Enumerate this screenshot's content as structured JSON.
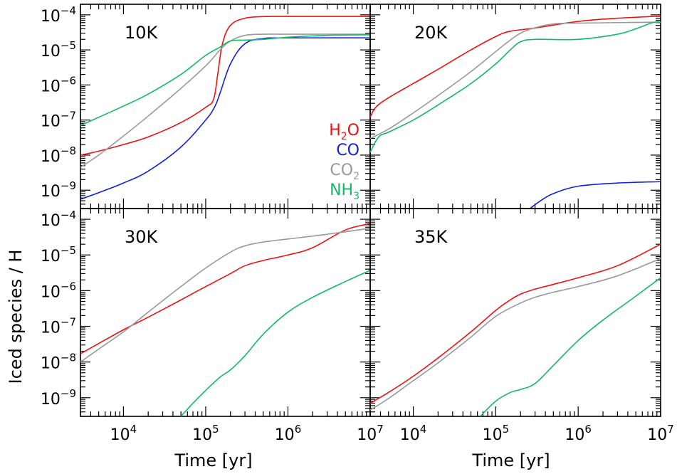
{
  "figure": {
    "ylabel": "Iced species / H",
    "xlabel": "Time [yr]"
  },
  "legend": [
    {
      "label": "H",
      "sub": "2",
      "suffix": "O",
      "color": "#ee1111"
    },
    {
      "label": "CO",
      "sub": "",
      "suffix": "",
      "color": "#1122dd"
    },
    {
      "label": "CO",
      "sub": "2",
      "suffix": "",
      "color": "#999999"
    },
    {
      "label": "NH",
      "sub": "3",
      "suffix": "",
      "color": "#11bb66"
    }
  ],
  "colors": {
    "h2o": "#ee1111",
    "co": "#1122dd",
    "co2": "#999999",
    "nh3": "#11bb66"
  },
  "chart_data": [
    {
      "type": "line",
      "panel_label": "10K",
      "xlabel": "",
      "ylabel": "Iced species / H",
      "x_scale": "log",
      "y_scale": "log",
      "xlim": [
        3000,
        10000000
      ],
      "ylim": [
        3e-10,
        0.0002
      ],
      "y_ticks": [
        "10^-9",
        "10^-8",
        "10^-7",
        "10^-6",
        "10^-5",
        "10^-4"
      ],
      "series": [
        {
          "name": "H2O",
          "color": "#ee1111",
          "points": [
            [
              3000,
              1e-08
            ],
            [
              5000,
              1.3e-08
            ],
            [
              10000,
              2e-08
            ],
            [
              20000,
              3.3e-08
            ],
            [
              50000,
              8.5e-08
            ],
            [
              100000,
              2.3e-07
            ],
            [
              125000,
              4e-07
            ],
            [
              140000,
              2e-06
            ],
            [
              160000,
              1.5e-05
            ],
            [
              200000,
              5e-05
            ],
            [
              300000,
              8e-05
            ],
            [
              500000,
              8.9e-05
            ],
            [
              1000000,
              9e-05
            ],
            [
              10000000,
              9e-05
            ]
          ]
        },
        {
          "name": "CO",
          "color": "#1122dd",
          "points": [
            [
              3000,
              5.5e-10
            ],
            [
              5000,
              8.5e-10
            ],
            [
              10000,
              1.6e-09
            ],
            [
              20000,
              3.5e-09
            ],
            [
              50000,
              1.7e-08
            ],
            [
              100000,
              1e-07
            ],
            [
              130000,
              2.5e-07
            ],
            [
              150000,
              6e-07
            ],
            [
              200000,
              4e-06
            ],
            [
              300000,
              1.5e-05
            ],
            [
              500000,
              2.1e-05
            ],
            [
              1000000,
              2.2e-05
            ],
            [
              10000000,
              2.2e-05
            ]
          ]
        },
        {
          "name": "CO2",
          "color": "#999999",
          "points": [
            [
              3000,
              4.5e-09
            ],
            [
              5000,
              1e-08
            ],
            [
              10000,
              3.5e-08
            ],
            [
              20000,
              1.3e-07
            ],
            [
              50000,
              8e-07
            ],
            [
              100000,
              3.5e-06
            ],
            [
              150000,
              1e-05
            ],
            [
              200000,
              1.8e-05
            ],
            [
              300000,
              2.6e-05
            ],
            [
              500000,
              2.8e-05
            ],
            [
              1000000,
              2.8e-05
            ],
            [
              10000000,
              2.8e-05
            ]
          ]
        },
        {
          "name": "NH3",
          "color": "#11bb66",
          "points": [
            [
              3000,
              7e-08
            ],
            [
              5000,
              1.2e-07
            ],
            [
              10000,
              2.5e-07
            ],
            [
              20000,
              5.5e-07
            ],
            [
              50000,
              2e-06
            ],
            [
              100000,
              7e-06
            ],
            [
              150000,
              1.2e-05
            ],
            [
              200000,
              1.8e-05
            ],
            [
              300000,
              1.9e-05
            ],
            [
              500000,
              2e-05
            ],
            [
              1000000,
              2.3e-05
            ],
            [
              3000000,
              2.6e-05
            ],
            [
              10000000,
              2.7e-05
            ]
          ]
        }
      ]
    },
    {
      "type": "line",
      "panel_label": "20K",
      "xlabel": "",
      "ylabel": "",
      "x_scale": "log",
      "y_scale": "log",
      "xlim": [
        3000,
        10000000
      ],
      "ylim": [
        3e-10,
        0.0002
      ],
      "series": [
        {
          "name": "H2O",
          "color": "#ee1111",
          "points": [
            [
              3000,
              1.2e-07
            ],
            [
              3500,
              2.3e-07
            ],
            [
              5000,
              4.3e-07
            ],
            [
              10000,
              1.1e-06
            ],
            [
              20000,
              2.8e-06
            ],
            [
              50000,
              1e-05
            ],
            [
              100000,
              2.4e-05
            ],
            [
              150000,
              3.4e-05
            ],
            [
              300000,
              4.2e-05
            ],
            [
              1000000,
              6.5e-05
            ],
            [
              3000000,
              8e-05
            ],
            [
              10000000,
              9.2e-05
            ]
          ]
        },
        {
          "name": "CO",
          "color": "#1122dd",
          "points": [
            [
              260000,
              3e-10
            ],
            [
              350000,
              5e-10
            ],
            [
              500000,
              8e-10
            ],
            [
              1000000,
              1.3e-09
            ],
            [
              3000000,
              1.6e-09
            ],
            [
              10000000,
              1.75e-09
            ]
          ]
        },
        {
          "name": "CO2",
          "color": "#999999",
          "points": [
            [
              3000,
              3e-08
            ],
            [
              5000,
              5.5e-08
            ],
            [
              10000,
              1.6e-07
            ],
            [
              20000,
              5e-07
            ],
            [
              50000,
              2.4e-06
            ],
            [
              100000,
              9e-06
            ],
            [
              150000,
              1.9e-05
            ],
            [
              200000,
              3e-05
            ],
            [
              300000,
              4.3e-05
            ],
            [
              500000,
              5.5e-05
            ],
            [
              1000000,
              5.8e-05
            ],
            [
              10000000,
              6.2e-05
            ]
          ]
        },
        {
          "name": "NH3",
          "color": "#11bb66",
          "points": [
            [
              3000,
              1.2e-08
            ],
            [
              3800,
              3.3e-08
            ],
            [
              5000,
              4.5e-08
            ],
            [
              10000,
              1e-07
            ],
            [
              20000,
              2.7e-07
            ],
            [
              50000,
              1.1e-06
            ],
            [
              100000,
              4e-06
            ],
            [
              150000,
              1e-05
            ],
            [
              200000,
              1.7e-05
            ],
            [
              300000,
              2e-05
            ],
            [
              1000000,
              2e-05
            ],
            [
              3000000,
              2.8e-05
            ],
            [
              5000000,
              4e-05
            ],
            [
              8000000,
              6e-05
            ],
            [
              10000000,
              6.2e-05
            ]
          ]
        }
      ]
    },
    {
      "type": "line",
      "panel_label": "30K",
      "xlabel": "Time [yr]",
      "ylabel": "Iced species / H",
      "x_scale": "log",
      "y_scale": "log",
      "xlim": [
        3000,
        10000000
      ],
      "ylim": [
        3e-10,
        0.0002
      ],
      "x_ticks": [
        "10^4",
        "10^5",
        "10^6",
        "10^7"
      ],
      "y_ticks": [
        "10^-9",
        "10^-8",
        "10^-7",
        "10^-6",
        "10^-5",
        "10^-4"
      ],
      "series": [
        {
          "name": "H2O",
          "color": "#ee1111",
          "points": [
            [
              3000,
              1.7e-08
            ],
            [
              5000,
              3.3e-08
            ],
            [
              10000,
              8e-08
            ],
            [
              20000,
              1.8e-07
            ],
            [
              50000,
              5.5e-07
            ],
            [
              100000,
              1.3e-06
            ],
            [
              200000,
              3e-06
            ],
            [
              300000,
              5e-06
            ],
            [
              500000,
              7e-06
            ],
            [
              1000000,
              1e-05
            ],
            [
              2000000,
              1.6e-05
            ],
            [
              5000000,
              5e-05
            ],
            [
              10000000,
              7.5e-05
            ]
          ]
        },
        {
          "name": "CO2",
          "color": "#999999",
          "points": [
            [
              3000,
              1e-08
            ],
            [
              5000,
              2.3e-08
            ],
            [
              10000,
              7e-08
            ],
            [
              20000,
              2.5e-07
            ],
            [
              50000,
              1.3e-06
            ],
            [
              100000,
              4.3e-06
            ],
            [
              200000,
              1.2e-05
            ],
            [
              300000,
              1.8e-05
            ],
            [
              500000,
              2.3e-05
            ],
            [
              1000000,
              2.8e-05
            ],
            [
              3000000,
              3.8e-05
            ],
            [
              10000000,
              5.6e-05
            ]
          ]
        },
        {
          "name": "NH3",
          "color": "#11bb66",
          "points": [
            [
              50000,
              3e-10
            ],
            [
              70000,
              7e-10
            ],
            [
              100000,
              1.6e-09
            ],
            [
              150000,
              3.8e-09
            ],
            [
              200000,
              6e-09
            ],
            [
              300000,
              1.5e-08
            ],
            [
              500000,
              6e-08
            ],
            [
              1000000,
              2.5e-07
            ],
            [
              2000000,
              6.5e-07
            ],
            [
              5000000,
              1.8e-06
            ],
            [
              10000000,
              3.7e-06
            ]
          ]
        }
      ]
    },
    {
      "type": "line",
      "panel_label": "35K",
      "xlabel": "Time [yr]",
      "ylabel": "",
      "x_scale": "log",
      "y_scale": "log",
      "xlim": [
        3000,
        10000000
      ],
      "ylim": [
        3e-10,
        0.0002
      ],
      "x_ticks": [
        "10^4",
        "10^5",
        "10^6",
        "10^7"
      ],
      "series": [
        {
          "name": "H2O",
          "color": "#ee1111",
          "points": [
            [
              3000,
              7e-10
            ],
            [
              5000,
              1.4e-09
            ],
            [
              10000,
              4e-09
            ],
            [
              20000,
              1.3e-08
            ],
            [
              50000,
              7e-08
            ],
            [
              100000,
              2.8e-07
            ],
            [
              150000,
              5.5e-07
            ],
            [
              200000,
              8e-07
            ],
            [
              300000,
              1.1e-06
            ],
            [
              500000,
              1.5e-06
            ],
            [
              1000000,
              2.3e-06
            ],
            [
              3000000,
              5e-06
            ],
            [
              10000000,
              2e-05
            ]
          ]
        },
        {
          "name": "CO2",
          "color": "#999999",
          "points": [
            [
              3000,
              4.5e-10
            ],
            [
              5000,
              9.5e-10
            ],
            [
              10000,
              3e-09
            ],
            [
              20000,
              9.5e-09
            ],
            [
              50000,
              5e-08
            ],
            [
              100000,
              1.9e-07
            ],
            [
              200000,
              4.5e-07
            ],
            [
              300000,
              6.5e-07
            ],
            [
              500000,
              9e-07
            ],
            [
              1000000,
              1.3e-06
            ],
            [
              3000000,
              2.6e-06
            ],
            [
              10000000,
              8e-06
            ]
          ]
        },
        {
          "name": "NH3",
          "color": "#11bb66",
          "points": [
            [
              65000,
              3e-10
            ],
            [
              100000,
              8e-10
            ],
            [
              150000,
              1.4e-09
            ],
            [
              200000,
              1.7e-09
            ],
            [
              300000,
              2.5e-09
            ],
            [
              500000,
              8e-09
            ],
            [
              1000000,
              4e-08
            ],
            [
              2000000,
              1.5e-07
            ],
            [
              5000000,
              7e-07
            ],
            [
              10000000,
              2.3e-06
            ]
          ]
        }
      ]
    }
  ]
}
